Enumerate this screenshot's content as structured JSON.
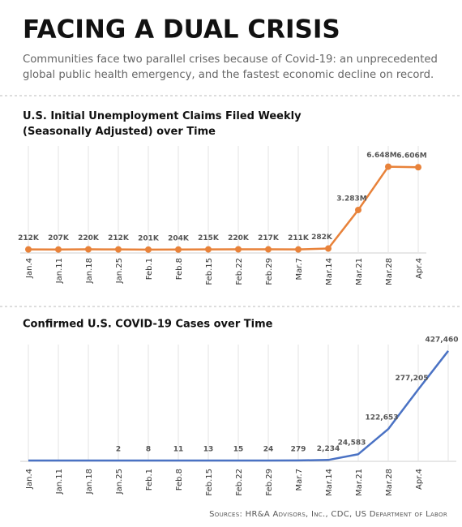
{
  "title": "FACING A DUAL CRISIS",
  "subtitle": "Communities face two parallel crises because of Covid-19: an unprecedented global public health emergency, and the fastest economic decline on record.",
  "source": "Sources: HR&A Advisors, Inc., CDC, US Department of Labor",
  "chart_data": [
    {
      "type": "line",
      "title": "U.S. Initial Unemployment Claims Filed Weekly (Seasonally Adjusted) over Time",
      "categories": [
        "Jan.4",
        "Jan.11",
        "Jan.18",
        "Jan.25",
        "Feb.1",
        "Feb.8",
        "Feb.15",
        "Feb.22",
        "Feb.29",
        "Mar.7",
        "Mar.14",
        "Mar.21",
        "Mar.28",
        "Apr.4"
      ],
      "values": [
        212000,
        207000,
        220000,
        212000,
        201000,
        204000,
        215000,
        220000,
        217000,
        211000,
        282000,
        3283000,
        6648000,
        6606000
      ],
      "value_labels": [
        "212K",
        "207K",
        "220K",
        "212K",
        "201K",
        "204K",
        "215K",
        "220K",
        "217K",
        "211K",
        "282K",
        "3.283M",
        "6.648M",
        "6.606M"
      ],
      "color": "#e8823a",
      "markers": true,
      "ylim": [
        0,
        7000000
      ]
    },
    {
      "type": "line",
      "title": "Confirmed U.S. COVID-19 Cases over Time",
      "categories": [
        "Jan.4",
        "Jan.11",
        "Jan.18",
        "Jan.25",
        "Feb.1",
        "Feb.8",
        "Feb.15",
        "Feb.22",
        "Feb.29",
        "Mar.7",
        "Mar.14",
        "Mar.21",
        "Mar.28",
        "Apr.4",
        null
      ],
      "values": [
        0,
        0,
        0,
        2,
        8,
        11,
        13,
        15,
        24,
        279,
        2234,
        24583,
        122653,
        277205,
        427460
      ],
      "value_labels": [
        null,
        null,
        null,
        "2",
        "8",
        "11",
        "13",
        "15",
        "24",
        "279",
        "2,234",
        "24,583",
        "122,653",
        "277,205",
        "427,460"
      ],
      "color": "#4a72c4",
      "markers": false,
      "ylim": [
        0,
        430000
      ]
    }
  ]
}
